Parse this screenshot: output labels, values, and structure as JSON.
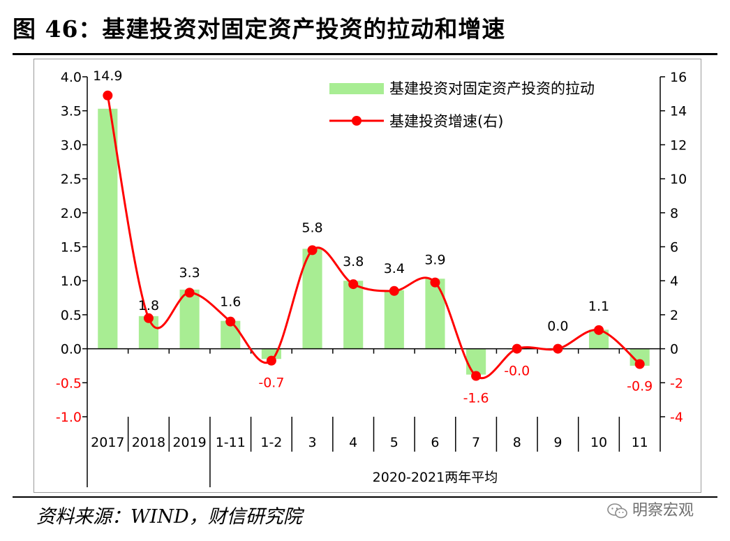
{
  "title": "图 46：基建投资对固定资产投资的拉动和增速",
  "source": "资料来源：WIND，财信研究院",
  "watermark": "明察宏观",
  "chart_data": {
    "type": "bar",
    "categories": [
      "2017",
      "2018",
      "2019",
      "1-11",
      "1-2",
      "3",
      "4",
      "5",
      "6",
      "7",
      "8",
      "9",
      "10",
      "11"
    ],
    "group_label": "2020-2021两年平均",
    "group_range": [
      "1-11",
      "11"
    ],
    "series": [
      {
        "name": "基建投资对固定资产投资的拉动",
        "type": "bar",
        "axis": "left",
        "color": "#a8ed93",
        "values": [
          3.53,
          0.48,
          0.87,
          0.41,
          -0.15,
          1.47,
          1.0,
          0.86,
          1.03,
          -0.38,
          -0.01,
          0.0,
          0.28,
          -0.25
        ]
      },
      {
        "name": "基建投资增速(右)",
        "type": "line",
        "axis": "right",
        "color": "#ff0000",
        "values": [
          14.9,
          1.8,
          3.3,
          1.6,
          -0.7,
          5.8,
          3.8,
          3.4,
          3.9,
          -1.6,
          -0.0,
          0.0,
          1.1,
          -0.9
        ],
        "labels": [
          "14.9",
          "1.8",
          "3.3",
          "1.6",
          "-0.7",
          "5.8",
          "3.8",
          "3.4",
          "3.9",
          "-1.6",
          "-0.0",
          "0.0",
          "1.1",
          "-0.9"
        ]
      }
    ],
    "y_left": {
      "min": -1.0,
      "max": 4.0,
      "step": 0.5,
      "ticks": [
        "4.0",
        "3.5",
        "3.0",
        "2.5",
        "2.0",
        "1.5",
        "1.0",
        "0.5",
        "0.0",
        "-0.5",
        "-1.0"
      ]
    },
    "y_right": {
      "min": -4,
      "max": 16,
      "step": 2,
      "ticks": [
        "16",
        "14",
        "12",
        "10",
        "8",
        "6",
        "4",
        "2",
        "0",
        "-2",
        "-4"
      ]
    },
    "negative_tick_color": "#ff0000",
    "legend_position": "top-right",
    "grid": false
  }
}
